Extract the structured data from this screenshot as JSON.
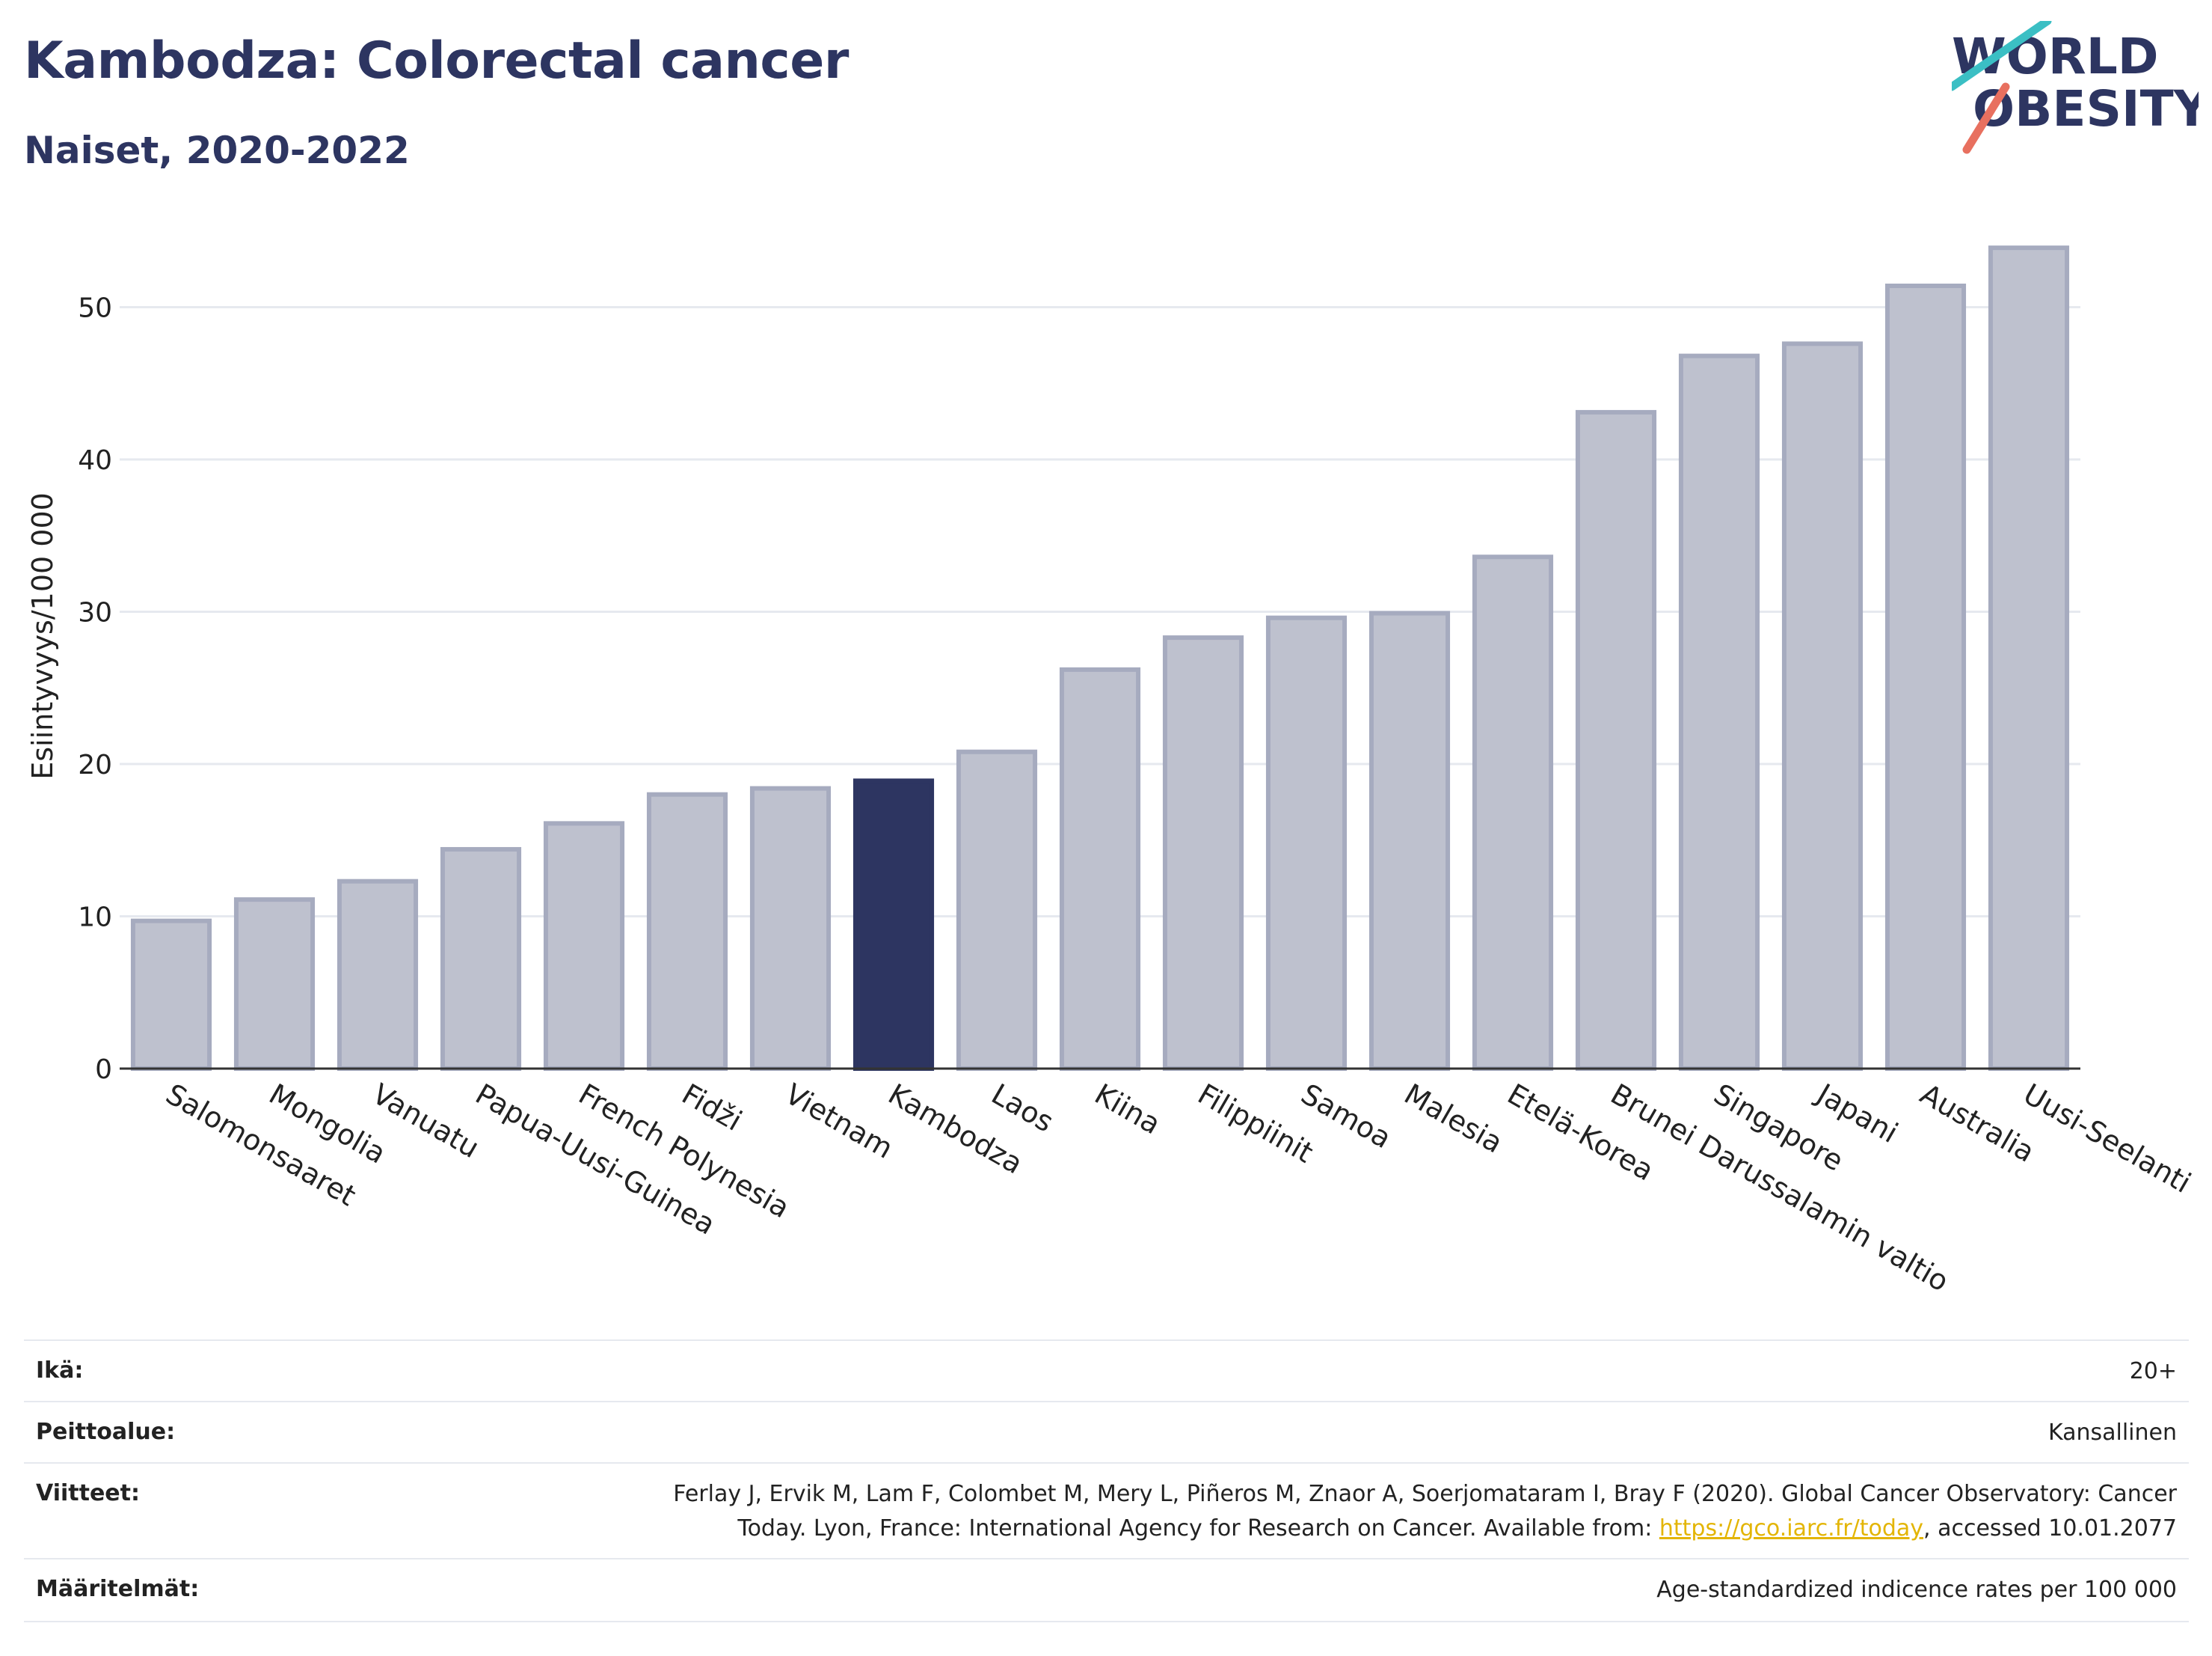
{
  "header": {
    "title": "Kambodza: Colorectal cancer",
    "subtitle": "Naiset, 2020-2022"
  },
  "logo": {
    "line1": "WORLD",
    "line2": "OBESITY"
  },
  "colors": {
    "bar_default": "#bec1ce",
    "bar_default_stroke": "#a6abbf",
    "bar_highlight": "#2d3561",
    "title": "#2d3561",
    "link": "#e3b505",
    "logo_slash_top": "#3bbfc4",
    "logo_slash_bottom": "#e8705f"
  },
  "chart_data": {
    "type": "bar",
    "title": "Kambodza: Colorectal cancer",
    "subtitle": "Naiset, 2020-2022",
    "ylabel": "Esiintyvyys/100 000",
    "xlabel": "",
    "ylim": [
      0,
      55
    ],
    "yticks": [
      0,
      10,
      20,
      30,
      40,
      50
    ],
    "grid": true,
    "highlight": "Kambodza",
    "categories": [
      "Salomonsaaret",
      "Mongolia",
      "Vanuatu",
      "Papua-Uusi-Guinea",
      "French Polynesia",
      "Fidži",
      "Vietnam",
      "Kambodza",
      "Laos",
      "Kiina",
      "Filippiinit",
      "Samoa",
      "Malesia",
      "Etelä-Korea",
      "Brunei Darussalamin valtio",
      "Singapore",
      "Japani",
      "Australia",
      "Uusi-Seelanti"
    ],
    "values": [
      9.7,
      11.1,
      12.3,
      14.4,
      16.1,
      18.0,
      18.4,
      18.9,
      20.8,
      26.2,
      28.3,
      29.6,
      29.9,
      33.6,
      43.1,
      46.8,
      47.6,
      51.4,
      53.9
    ]
  },
  "meta": {
    "rows": [
      {
        "label": "Ikä:",
        "value": "20+"
      },
      {
        "label": "Peittoalue:",
        "value": "Kansallinen"
      },
      {
        "label": "Viitteet:",
        "value_line1": "Ferlay J, Ervik M, Lam F, Colombet M, Mery L, Piñeros M, Znaor A, Soerjomataram I, Bray F (2020). Global Cancer Observatory: Cancer",
        "value_line2_pre": "Today. Lyon, France: International Agency for Research on Cancer. Available from: ",
        "link": "https://gco.iarc.fr/today",
        "value_line2_post": ", accessed 10.01.2077"
      },
      {
        "label": "Määritelmät:",
        "value": "Age-standardized indicence rates per 100 000"
      }
    ]
  }
}
